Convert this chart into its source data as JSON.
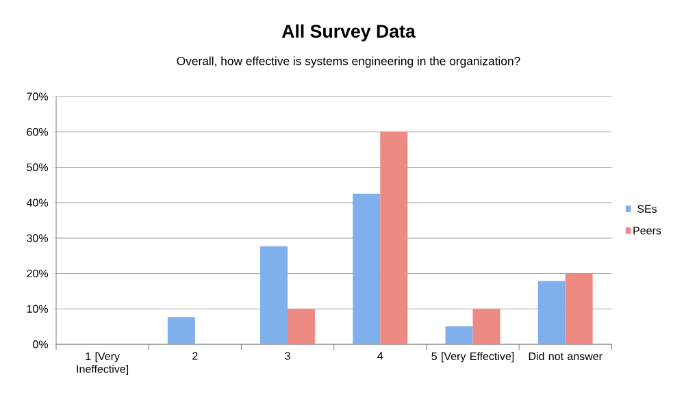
{
  "chart_data": {
    "type": "bar",
    "title": "All Survey Data",
    "subtitle": "Overall, how effective is systems engineering in the organization?",
    "categories": [
      "1 [Very Ineffective]",
      "2",
      "3",
      "4",
      "5 [Very Effective]",
      "Did not answer"
    ],
    "series": [
      {
        "name": "SEs",
        "color": "#7fb0ec",
        "values": [
          0,
          7.7,
          27.7,
          42.6,
          5.1,
          17.9
        ]
      },
      {
        "name": "Peers",
        "color": "#ee8a84",
        "values": [
          0,
          0,
          10,
          60,
          10,
          20
        ]
      }
    ],
    "ylim": [
      0,
      70
    ],
    "yticks": [
      {
        "value": 0,
        "label": "0%"
      },
      {
        "value": 10,
        "label": "10%"
      },
      {
        "value": 20,
        "label": "20%"
      },
      {
        "value": 30,
        "label": "30%"
      },
      {
        "value": 40,
        "label": "40%"
      },
      {
        "value": 50,
        "label": "50%"
      },
      {
        "value": 60,
        "label": "60%"
      },
      {
        "value": 70,
        "label": "70%"
      }
    ],
    "grid": "y",
    "legend": "right"
  }
}
